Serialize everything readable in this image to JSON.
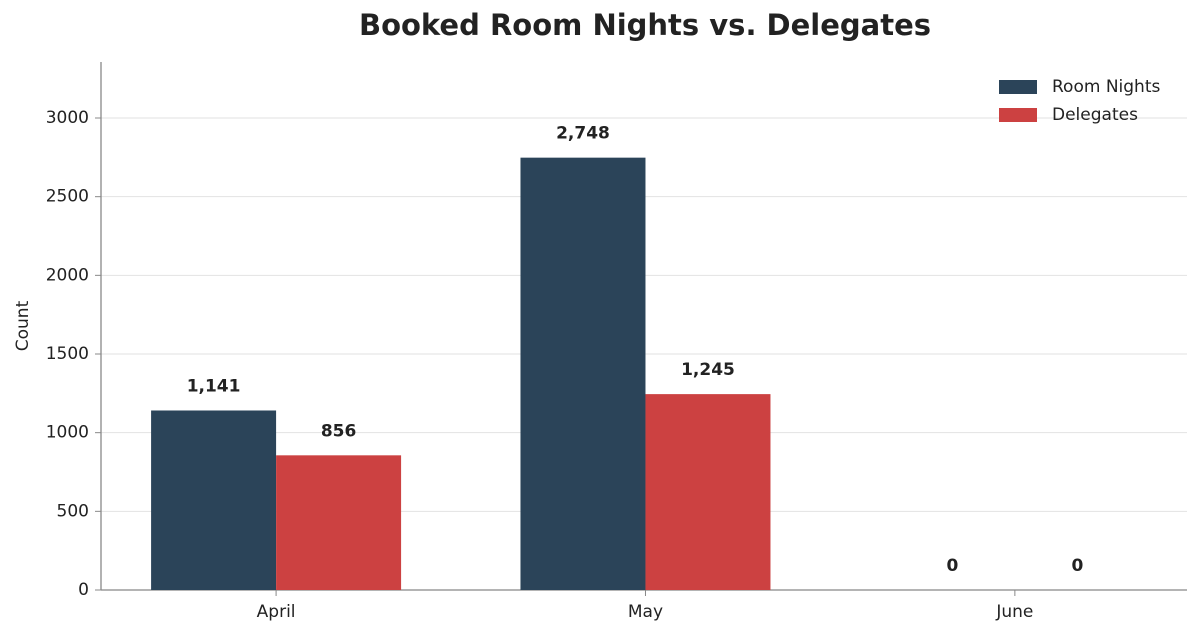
{
  "chart_data": {
    "type": "bar",
    "title": "Booked Room Nights vs. Delegates",
    "y_label": "Count",
    "categories": [
      "April",
      "May",
      "June"
    ],
    "series": [
      {
        "name": "Room Nights",
        "color": "#2b4459",
        "values": [
          1141,
          2748,
          0
        ],
        "value_labels": [
          "1,141",
          "2,748",
          "0"
        ]
      },
      {
        "name": "Delegates",
        "color": "#cc4141",
        "values": [
          856,
          1245,
          0
        ],
        "value_labels": [
          "856",
          "1,245",
          "0"
        ]
      }
    ],
    "ylim": [
      0,
      3356
    ],
    "yticks": [
      0,
      500,
      1000,
      1500,
      2000,
      2500,
      3000
    ],
    "grid": true,
    "legend": "upper right"
  }
}
